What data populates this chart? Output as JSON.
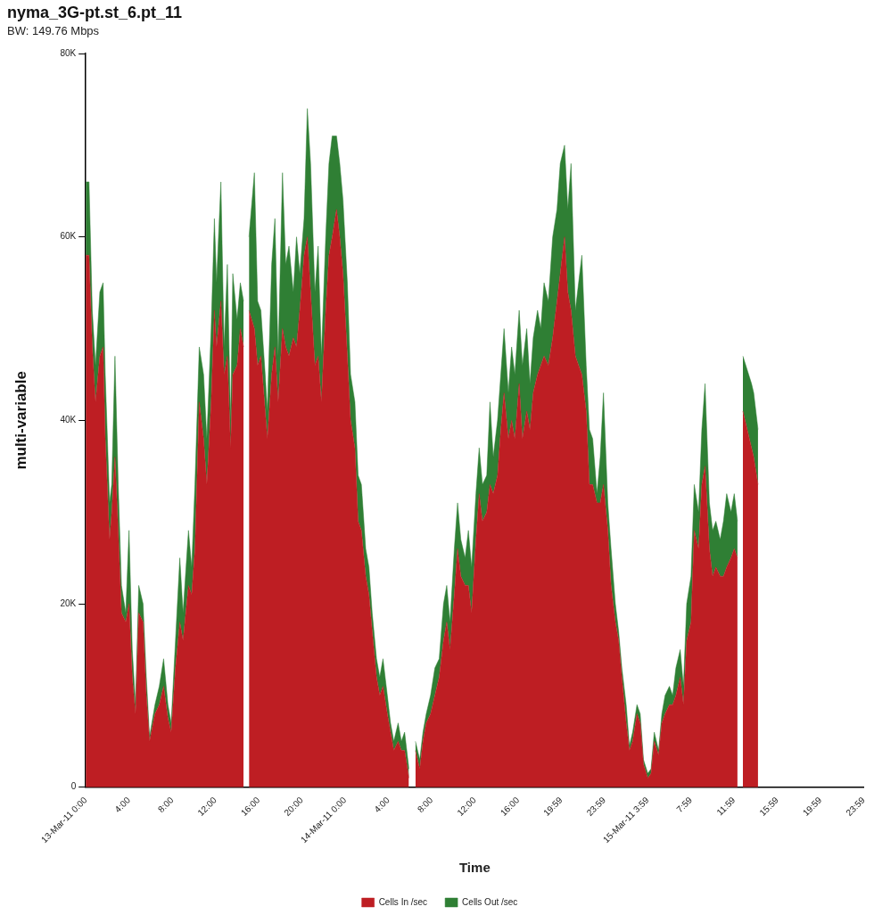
{
  "chart_data": {
    "type": "area",
    "title": "nyma_3G-pt.st_6.pt_11",
    "subtitle": "BW: 149.76 Mbps",
    "xlabel": "Time",
    "ylabel": "multi-variable",
    "stacked": true,
    "marker": "none",
    "legend": "bottom",
    "x": [
      "--03-13T00:00",
      "--03-13T00:18",
      "--03-13T00:36",
      "--03-13T00:54",
      "--03-13T01:18",
      "--03-13T01:36",
      "--03-13T01:48",
      "--03-13T02:12",
      "--03-13T02:24",
      "--03-13T02:42",
      "--03-13T03:00",
      "--03-13T03:18",
      "--03-13T03:42",
      "--03-13T04:00",
      "--03-13T04:18",
      "--03-13T04:36",
      "--03-13T04:54",
      "--03-13T05:18",
      "--03-13T05:36",
      "--03-13T05:54",
      "--03-13T06:24",
      "--03-13T06:48",
      "--03-13T07:12",
      "--03-13T07:36",
      "--03-13T07:54",
      "--03-13T08:18",
      "--03-13T08:42",
      "--03-13T09:00",
      "--03-13T09:30",
      "--03-13T09:48",
      "--03-13T10:06",
      "--03-13T10:30",
      "--03-13T10:54",
      "--03-13T11:12",
      "--03-13T11:36",
      "--03-13T11:54",
      "--03-13T12:06",
      "--03-13T12:30",
      "--03-13T12:48",
      "--03-13T13:06",
      "--03-13T13:24",
      "--03-13T13:36",
      "--03-13T14:00",
      "--03-13T14:18",
      "--03-13T14:36",
      "--03-13T14:54",
      "--03-13T15:06",
      "--03-13T15:36",
      "--03-13T15:54",
      "--03-13T16:12",
      "--03-13T16:36",
      "--03-13T16:48",
      "--03-13T17:12",
      "--03-13T17:30",
      "--03-13T17:48",
      "--03-13T18:12",
      "--03-13T18:30",
      "--03-13T18:48",
      "--03-13T19:12",
      "--03-13T19:30",
      "--03-13T19:48",
      "--03-13T20:12",
      "--03-13T20:30",
      "--03-13T20:48",
      "--03-13T21:12",
      "--03-13T21:30",
      "--03-13T21:48",
      "--03-13T22:12",
      "--03-13T22:30",
      "--03-13T22:48",
      "--03-13T23:12",
      "--03-13T23:30",
      "--03-13T23:48",
      "--03-14T00:12",
      "--03-14T00:30",
      "--03-14T00:54",
      "--03-14T01:12",
      "--03-14T01:30",
      "--03-14T01:54",
      "--03-14T02:12",
      "--03-14T02:30",
      "--03-14T02:54",
      "--03-14T03:12",
      "--03-14T03:30",
      "--03-14T03:54",
      "--03-14T04:12",
      "--03-14T04:30",
      "--03-14T04:54",
      "--03-14T05:12",
      "--03-14T05:30",
      "--03-14T05:54",
      "--03-14T06:12",
      "--03-14T06:30",
      "--03-14T06:54",
      "--03-14T07:12",
      "--03-14T07:30",
      "--03-14T07:54",
      "--03-14T08:18",
      "--03-14T08:42",
      "--03-14T09:06",
      "--03-14T09:24",
      "--03-14T09:42",
      "--03-14T10:06",
      "--03-14T10:24",
      "--03-14T10:42",
      "--03-14T11:06",
      "--03-14T11:24",
      "--03-14T11:42",
      "--03-14T12:06",
      "--03-14T12:24",
      "--03-14T12:42",
      "--03-14T13:06",
      "--03-14T13:24",
      "--03-14T13:42",
      "--03-14T14:06",
      "--03-14T14:24",
      "--03-14T14:42",
      "--03-14T15:06",
      "--03-14T15:24",
      "--03-14T15:42",
      "--03-14T16:06",
      "--03-14T16:24",
      "--03-14T16:48",
      "--03-14T17:06",
      "--03-14T17:24",
      "--03-14T17:48",
      "--03-14T18:06",
      "--03-14T18:24",
      "--03-14T18:48",
      "--03-14T19:12",
      "--03-14T19:36",
      "--03-14T19:54",
      "--03-14T20:18",
      "--03-14T20:36",
      "--03-14T20:54",
      "--03-14T21:18",
      "--03-14T21:36",
      "--03-14T21:54",
      "--03-14T22:18",
      "--03-14T22:36",
      "--03-14T22:54",
      "--03-14T23:18",
      "--03-14T23:36",
      "--03-14T23:54",
      "--03-15T00:18",
      "--03-15T00:36",
      "--03-15T01:00",
      "--03-15T01:18",
      "--03-15T01:36",
      "--03-15T02:00",
      "--03-15T02:18",
      "--03-15T02:36",
      "--03-15T03:00",
      "--03-15T03:18",
      "--03-15T03:36",
      "--03-15T04:00",
      "--03-15T04:18",
      "--03-15T04:36",
      "--03-15T05:00",
      "--03-15T05:18",
      "--03-15T05:36",
      "--03-15T06:00",
      "--03-15T06:18",
      "--03-15T06:36",
      "--03-15T07:00",
      "--03-15T07:18",
      "--03-15T07:36",
      "--03-15T08:00",
      "--03-15T08:18",
      "--03-15T08:42",
      "--03-15T09:00",
      "--03-15T09:18",
      "--03-15T09:42",
      "--03-15T10:00",
      "--03-15T10:18",
      "--03-15T10:42",
      "--03-15T11:00",
      "--03-15T11:18",
      "--03-15T11:42",
      "--03-15T12:00",
      "--03-15T12:18",
      "--03-15T12:36",
      "--03-15T12:48",
      "--03-15T13:36",
      "--03-15T13:48",
      "--03-15T14:12"
    ],
    "series": [
      {
        "name": "Cells In /sec",
        "color": "#be1e23",
        "values": [
          58000,
          58000,
          48000,
          42000,
          47000,
          48000,
          38000,
          27000,
          30000,
          36000,
          28000,
          19000,
          18000,
          20000,
          12000,
          8000,
          19000,
          18000,
          10000,
          5000,
          8000,
          9000,
          11000,
          7500,
          6000,
          13000,
          18000,
          16000,
          22000,
          21000,
          26000,
          42000,
          38000,
          33000,
          42000,
          52000,
          48000,
          53000,
          45000,
          47000,
          37000,
          45000,
          46000,
          50000,
          48000,
          null,
          52000,
          50000,
          46000,
          47000,
          41000,
          38000,
          45000,
          48000,
          42000,
          50000,
          48000,
          47000,
          49000,
          48000,
          52000,
          58000,
          60000,
          54000,
          46000,
          47000,
          42000,
          52000,
          58000,
          60000,
          63000,
          60000,
          56000,
          47000,
          40000,
          37000,
          29000,
          28000,
          23000,
          21000,
          17000,
          12000,
          10000,
          11000,
          8000,
          6000,
          4000,
          5000,
          4000,
          4000,
          1000,
          null,
          4000,
          2000,
          5000,
          7000,
          8000,
          10000,
          12000,
          16000,
          18000,
          15000,
          21000,
          26000,
          23000,
          22000,
          22000,
          19000,
          27000,
          32000,
          29000,
          30000,
          33000,
          32000,
          34000,
          39000,
          43000,
          38000,
          40000,
          38000,
          44000,
          38000,
          41000,
          39000,
          43000,
          45000,
          46000,
          47000,
          46000,
          49000,
          53000,
          56000,
          60000,
          54000,
          52000,
          47000,
          46000,
          45000,
          41000,
          33000,
          33000,
          31000,
          31000,
          33000,
          28000,
          22000,
          18000,
          16000,
          12000,
          7000,
          4000,
          5000,
          8000,
          7000,
          2500,
          1000,
          1500,
          5000,
          3500,
          7000,
          8000,
          9000,
          9000,
          10000,
          12000,
          9000,
          16000,
          18000,
          28000,
          26000,
          33000,
          35000,
          26000,
          23000,
          24000,
          23000,
          23000,
          24000,
          25000,
          26000,
          25000,
          null,
          41000,
          37000,
          36000,
          33000
        ]
      },
      {
        "name": "Cells Out /sec",
        "color": "#2f7f34",
        "values": [
          8000,
          8000,
          4000,
          4000,
          7000,
          7000,
          7000,
          4000,
          3000,
          11000,
          5000,
          3000,
          1000,
          8000,
          3000,
          1000,
          3000,
          2000,
          2000,
          500,
          1000,
          2000,
          3000,
          1500,
          1000,
          3000,
          7000,
          3000,
          6000,
          3000,
          7000,
          6000,
          7000,
          5000,
          8000,
          10000,
          7000,
          13000,
          3000,
          10000,
          3000,
          11000,
          5000,
          5000,
          5000,
          null,
          8000,
          17000,
          7000,
          5000,
          4000,
          3000,
          12000,
          14000,
          5000,
          17000,
          9000,
          12000,
          5000,
          12000,
          4000,
          4000,
          14000,
          14000,
          8000,
          12000,
          5000,
          8000,
          10000,
          11000,
          8000,
          8000,
          8000,
          8000,
          5000,
          5000,
          5000,
          5000,
          3000,
          3000,
          2000,
          2000,
          2000,
          3000,
          2000,
          1000,
          1000,
          2000,
          1000,
          2000,
          1000,
          null,
          1000,
          1000,
          1000,
          1000,
          2000,
          3000,
          2000,
          4000,
          4000,
          3000,
          5000,
          5000,
          4000,
          3000,
          6000,
          5000,
          5000,
          5000,
          4000,
          4000,
          9000,
          4000,
          6000,
          6000,
          7000,
          5000,
          8000,
          7000,
          8000,
          8000,
          9000,
          5000,
          6000,
          7000,
          4000,
          8000,
          7000,
          11000,
          10000,
          12000,
          10000,
          9000,
          16000,
          5000,
          9000,
          13000,
          5000,
          6000,
          5000,
          1000,
          5000,
          10000,
          3000,
          4000,
          2000,
          1000,
          1000,
          2000,
          500,
          1000,
          1000,
          1000,
          500,
          500,
          500,
          1000,
          500,
          1000,
          2000,
          2000,
          1000,
          3000,
          3000,
          2000,
          4000,
          5000,
          5000,
          4000,
          6000,
          9000,
          5000,
          5000,
          5000,
          4000,
          6000,
          8000,
          5000,
          6000,
          4000,
          null,
          6000,
          7000,
          7000,
          6000
        ]
      }
    ],
    "xlim": [
      "--03-13T00:00",
      "--03-15T23:59"
    ],
    "xticks": [
      {
        "value": "--03-13T00:00",
        "label": "13-Mar-11 0:00"
      },
      {
        "value": "--03-13T04:00",
        "label": "4:00"
      },
      {
        "value": "--03-13T08:00",
        "label": "8:00"
      },
      {
        "value": "--03-13T12:00",
        "label": "12:00"
      },
      {
        "value": "--03-13T16:00",
        "label": "16:00"
      },
      {
        "value": "--03-13T20:00",
        "label": "20:00"
      },
      {
        "value": "--03-14T00:00",
        "label": "14-Mar-11 0:00"
      },
      {
        "value": "--03-14T04:00",
        "label": "4:00"
      },
      {
        "value": "--03-14T08:00",
        "label": "8:00"
      },
      {
        "value": "--03-14T12:00",
        "label": "12:00"
      },
      {
        "value": "--03-14T16:00",
        "label": "16:00"
      },
      {
        "value": "--03-14T19:59",
        "label": "19:59"
      },
      {
        "value": "--03-14T23:59",
        "label": "23:59"
      },
      {
        "value": "--03-15T03:59",
        "label": "15-Mar-11 3:59"
      },
      {
        "value": "--03-15T07:59",
        "label": "7:59"
      },
      {
        "value": "--03-15T11:59",
        "label": "11:59"
      },
      {
        "value": "--03-15T15:59",
        "label": "15:59"
      },
      {
        "value": "--03-15T19:59",
        "label": "19:59"
      },
      {
        "value": "--03-15T23:59",
        "label": "23:59"
      }
    ],
    "ylim": [
      0,
      80000
    ],
    "yticks": [
      0,
      {
        "value": 20000,
        "label": "20K"
      },
      {
        "value": 40000,
        "label": "40K"
      },
      {
        "value": 60000,
        "label": "60K"
      },
      {
        "value": 80000,
        "label": "80K"
      }
    ]
  }
}
